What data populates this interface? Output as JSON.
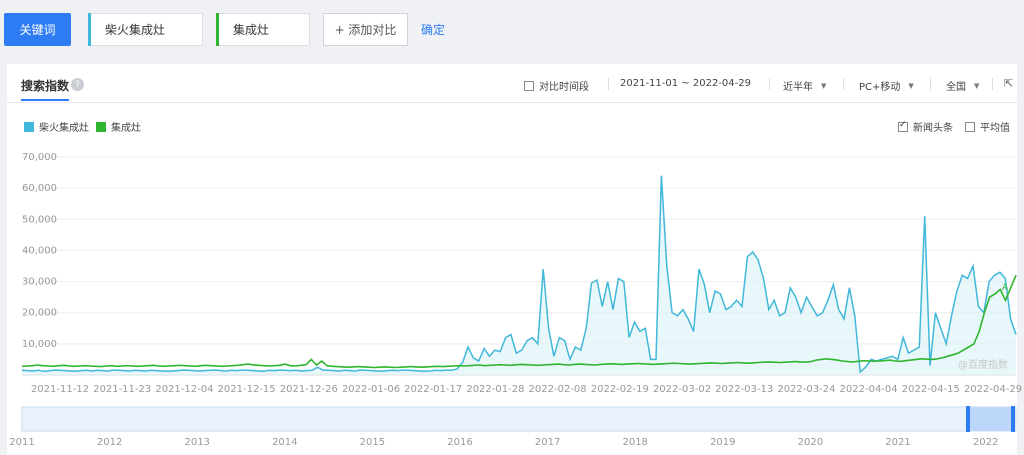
{
  "topbar": {
    "keyword_button": "关键词",
    "keywords": [
      {
        "label": "柴火集成灶",
        "color": "#41b8d9"
      },
      {
        "label": "集成灶",
        "color": "#2fb52f"
      }
    ],
    "add_compare": "+ 添加对比",
    "confirm": "确定"
  },
  "panel": {
    "tab_label": "搜索指数",
    "compare_period": "对比时间段",
    "date_range": "2021-11-01 ~ 2022-04-29",
    "period_select": "近半年",
    "device_select": "PC+移动",
    "region_select": "全国",
    "news_label": "新闻头条",
    "avg_label": "平均值",
    "watermark": "@百度指数",
    "annotation_marker": "A"
  },
  "chart_data": {
    "type": "line",
    "ylim": [
      0,
      70000
    ],
    "y_ticks": [
      "70,000",
      "60,000",
      "50,000",
      "40,000",
      "30,000",
      "20,000",
      "10,000"
    ],
    "x_ticks": [
      "2021-11-12",
      "2021-11-23",
      "2021-12-04",
      "2021-12-15",
      "2021-12-26",
      "2022-01-06",
      "2022-01-17",
      "2022-01-28",
      "2022-02-08",
      "2022-02-19",
      "2022-03-02",
      "2022-03-13",
      "2022-03-24",
      "2022-04-04",
      "2022-04-15",
      "2022-04-29"
    ],
    "series": [
      {
        "name": "柴火集成灶",
        "color": "#41b8d9",
        "values": [
          1500,
          1400,
          1300,
          1500,
          1200,
          1300,
          1600,
          1500,
          1400,
          1300,
          1200,
          1400,
          1500,
          1300,
          1500,
          1400,
          1300,
          1600,
          1500,
          1400,
          1300,
          1500,
          1400,
          1300,
          1500,
          1400,
          1300,
          1200,
          1300,
          1400,
          1600,
          1500,
          1400,
          1300,
          1400,
          1500,
          1600,
          1400,
          1300,
          1500,
          1400,
          1600,
          1500,
          1400,
          1300,
          1200,
          1500,
          1400,
          1600,
          1500,
          1400,
          1500,
          1300,
          1400,
          1500,
          2500,
          1600,
          1500,
          1400,
          1300,
          1500,
          1400,
          1300,
          1600,
          1500,
          1400,
          1300,
          1200,
          1400,
          1500,
          1400,
          1600,
          1500,
          1400,
          1300,
          1200,
          1300,
          1500,
          1400,
          1600,
          1500,
          2000,
          4000,
          9000,
          5500,
          4500,
          8500,
          6000,
          8000,
          7500,
          12000,
          13000,
          7000,
          8000,
          11000,
          12000,
          10000,
          34000,
          15000,
          6000,
          12000,
          11000,
          5000,
          9000,
          8000,
          15000,
          29500,
          30500,
          22000,
          30000,
          21000,
          31000,
          30000,
          12000,
          17000,
          14000,
          15000,
          5000,
          5000,
          64000,
          35000,
          20000,
          19000,
          21000,
          18000,
          14000,
          34000,
          29000,
          20000,
          27000,
          26000,
          21000,
          22000,
          24000,
          22000,
          38000,
          39500,
          37000,
          31000,
          21000,
          24000,
          19000,
          20000,
          28000,
          25000,
          20000,
          25000,
          22000,
          19000,
          20000,
          24000,
          29000,
          21000,
          18000,
          28000,
          19000,
          1000,
          2500,
          5000,
          4500,
          5000,
          5500,
          6000,
          5000,
          12000,
          7000,
          8000,
          9000,
          51000,
          3000,
          20000,
          15000,
          10000,
          19000,
          27000,
          32000,
          31000,
          35000,
          22000,
          20000,
          30000,
          32000,
          33000,
          31000,
          18000,
          13000
        ]
      },
      {
        "name": "集成灶",
        "color": "#2fb52f",
        "values": [
          2800,
          2900,
          3000,
          3200,
          3000,
          2900,
          2800,
          3000,
          3100,
          2900,
          2800,
          2900,
          3000,
          2900,
          2800,
          2700,
          2900,
          3000,
          2800,
          2900,
          3000,
          2900,
          2800,
          2900,
          3000,
          3100,
          2900,
          2800,
          2900,
          3000,
          3100,
          3000,
          2900,
          2800,
          3000,
          3100,
          3000,
          2900,
          2800,
          2900,
          3000,
          3100,
          3300,
          3500,
          3200,
          3100,
          3000,
          2900,
          3000,
          3100,
          3500,
          3000,
          2900,
          3100,
          3300,
          5000,
          3200,
          4500,
          3000,
          2800,
          2700,
          2600,
          2500,
          2600,
          2700,
          2600,
          2500,
          2400,
          2500,
          2600,
          2500,
          2400,
          2500,
          2600,
          2700,
          2600,
          2500,
          2600,
          2700,
          2800,
          2700,
          2800,
          2900,
          3000,
          2900,
          3000,
          3100,
          3200,
          3000,
          3100,
          3200,
          3300,
          3200,
          3100,
          3300,
          3400,
          3300,
          3200,
          3100,
          3200,
          3300,
          3400,
          3500,
          3300,
          3200,
          3400,
          3500,
          3400,
          3300,
          3200,
          3400,
          3500,
          3600,
          3500,
          3400,
          3500,
          3600,
          3700,
          3600,
          3500,
          3400,
          3500,
          3600,
          3700,
          3800,
          3700,
          3600,
          3500,
          3600,
          3700,
          3800,
          3900,
          3800,
          3700,
          3800,
          3900,
          4000,
          3900,
          3800,
          3900,
          4000,
          4100,
          4200,
          4100,
          4000,
          4100,
          4200,
          4300,
          4200,
          4100,
          4300,
          4800,
          5000,
          5200,
          5000,
          4800,
          4500,
          4300,
          4200,
          4400,
          4600,
          4500,
          4400,
          4500,
          4600,
          4800,
          4500,
          4400,
          4600,
          4800,
          5000,
          5200,
          5100,
          5000,
          5200,
          5500,
          6000,
          6500,
          7000,
          8000,
          9000,
          10000,
          14000,
          20000,
          25000,
          26000,
          27500,
          24000,
          28000,
          32000
        ]
      }
    ]
  },
  "overview": {
    "years": [
      "2011",
      "2012",
      "2013",
      "2014",
      "2015",
      "2016",
      "2017",
      "2018",
      "2019",
      "2020",
      "2021",
      "2022"
    ]
  }
}
